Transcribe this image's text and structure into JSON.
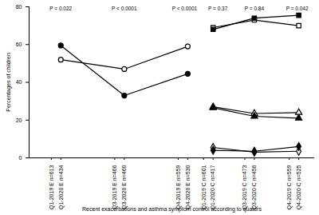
{
  "chart_data": {
    "type": "line",
    "xlabel": "Recent exacerbations and asthma symptom control according to quaters",
    "ylabel": "Percentages of children",
    "xlim": [
      0,
      9
    ],
    "xticks": [
      {
        "value": 0.7,
        "label": "Q1-2019 E n=613"
      },
      {
        "value": 1,
        "label": "Q1-2020 E n=434"
      },
      {
        "value": 2.7,
        "label": "Q3-2019 E n=466"
      },
      {
        "value": 3,
        "label": "Q3-2020 E n=460"
      },
      {
        "value": 4.7,
        "label": "Q4-2019 E n=559"
      },
      {
        "value": 5,
        "label": "Q4-2020 E n=530"
      },
      {
        "value": 5.5,
        "label": "Q1-2019 C n=601"
      },
      {
        "value": 5.8,
        "label": "Q1-2020 C n=417"
      },
      {
        "value": 6.8,
        "label": "Q3-2019 C n=473"
      },
      {
        "value": 7.1,
        "label": "Q3-2020 C n=456"
      },
      {
        "value": 8.2,
        "label": "Q4-2019 C n=559"
      },
      {
        "value": 8.5,
        "label": "Q4-2020 C n=525"
      }
    ],
    "ylim": [
      0,
      80
    ],
    "yticks": [
      0,
      20,
      40,
      60,
      80
    ],
    "grid": false,
    "series": [
      {
        "color": "#000000",
        "marker": "circle-open",
        "x": [
          1,
          3,
          5
        ],
        "values": [
          52,
          47,
          59
        ]
      },
      {
        "color": "#000000",
        "marker": "circle",
        "x": [
          1,
          3,
          5
        ],
        "values": [
          59.5,
          33,
          44.5
        ]
      },
      {
        "color": "#000000",
        "marker": "square-open",
        "x": [
          5.8,
          7.1,
          8.5
        ],
        "values": [
          69,
          73,
          70
        ]
      },
      {
        "color": "#000000",
        "marker": "square",
        "x": [
          5.8,
          7.1,
          8.5
        ],
        "values": [
          68,
          74,
          75.5
        ]
      },
      {
        "color": "#000000",
        "marker": "triangle-open",
        "x": [
          5.8,
          7.1,
          8.5
        ],
        "values": [
          27,
          23.5,
          24
        ]
      },
      {
        "color": "#000000",
        "marker": "triangle",
        "x": [
          5.8,
          7.1,
          8.5
        ],
        "values": [
          26.5,
          22,
          21
        ]
      },
      {
        "color": "#000000",
        "marker": "diamond-open",
        "x": [
          5.8,
          7.1,
          8.5
        ],
        "values": [
          5.5,
          3,
          3.5
        ]
      },
      {
        "color": "#000000",
        "marker": "diamond",
        "x": [
          5.8,
          7.1,
          8.5
        ],
        "values": [
          4,
          3.5,
          6
        ]
      }
    ],
    "annotations": [
      {
        "text": "P = 0.022",
        "x": 1,
        "y": 79
      },
      {
        "text": "P < 0.0001",
        "x": 3,
        "y": 79
      },
      {
        "text": "P < 0.0001",
        "x": 4.9,
        "y": 79
      },
      {
        "text": "P = 0.37",
        "x": 5.95,
        "y": 79
      },
      {
        "text": "P = 0.84",
        "x": 7.1,
        "y": 79
      },
      {
        "text": "P = 0.042",
        "x": 8.45,
        "y": 79
      }
    ]
  }
}
